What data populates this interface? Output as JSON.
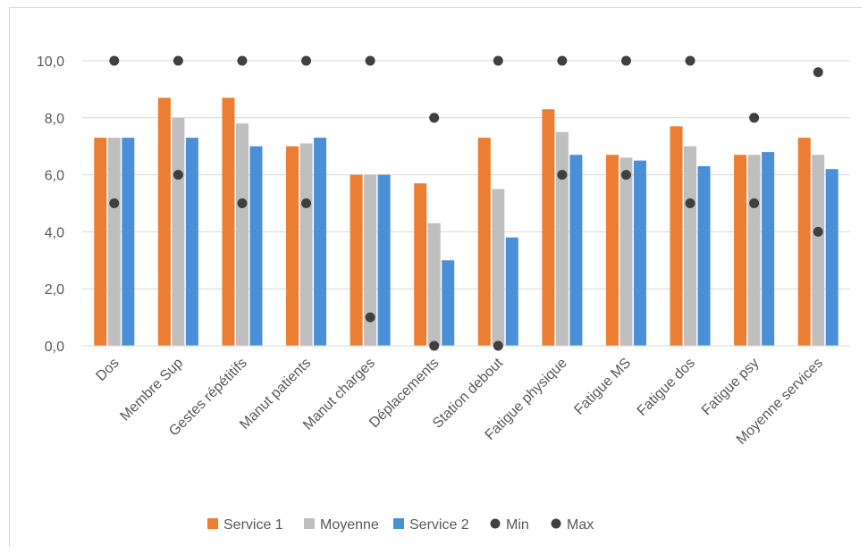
{
  "chart_data": {
    "type": "bar",
    "categories": [
      "Dos",
      "Membre Sup",
      "Gestes répétitifs",
      "Manut patients",
      "Manut charges",
      "Déplacements",
      "Station debout",
      "Fatigue physique",
      "Fatigue MS",
      "Fatigue dos",
      "Fatigue psy",
      "Moyenne services"
    ],
    "series": [
      {
        "name": "Service 1",
        "kind": "bar",
        "color": "#ED7D31",
        "values": [
          7.3,
          8.7,
          8.7,
          7.0,
          6.0,
          5.7,
          7.3,
          8.3,
          6.7,
          7.7,
          6.7,
          7.3
        ]
      },
      {
        "name": "Moyenne",
        "kind": "bar",
        "color": "#BFBFBF",
        "values": [
          7.3,
          8.0,
          7.8,
          7.1,
          6.0,
          4.3,
          5.5,
          7.5,
          6.6,
          7.0,
          6.7,
          6.7
        ]
      },
      {
        "name": "Service 2",
        "kind": "bar",
        "color": "#4A90D9",
        "values": [
          7.3,
          7.3,
          7.0,
          7.3,
          6.0,
          3.0,
          3.8,
          6.7,
          6.5,
          6.3,
          6.8,
          6.2
        ]
      },
      {
        "name": "Min",
        "kind": "marker",
        "color": "#404040",
        "values": [
          5,
          6,
          5,
          5,
          1,
          0,
          0,
          6,
          6,
          5,
          5,
          4
        ]
      },
      {
        "name": "Max",
        "kind": "marker",
        "color": "#404040",
        "values": [
          10,
          10,
          10,
          10,
          10,
          8,
          10,
          10,
          10,
          10,
          8,
          9.6
        ]
      }
    ],
    "yticks": [
      "0,0",
      "2,0",
      "4,0",
      "6,0",
      "8,0",
      "10,0"
    ],
    "ylim": [
      0,
      11
    ],
    "grid": true,
    "legend": "bottom"
  }
}
